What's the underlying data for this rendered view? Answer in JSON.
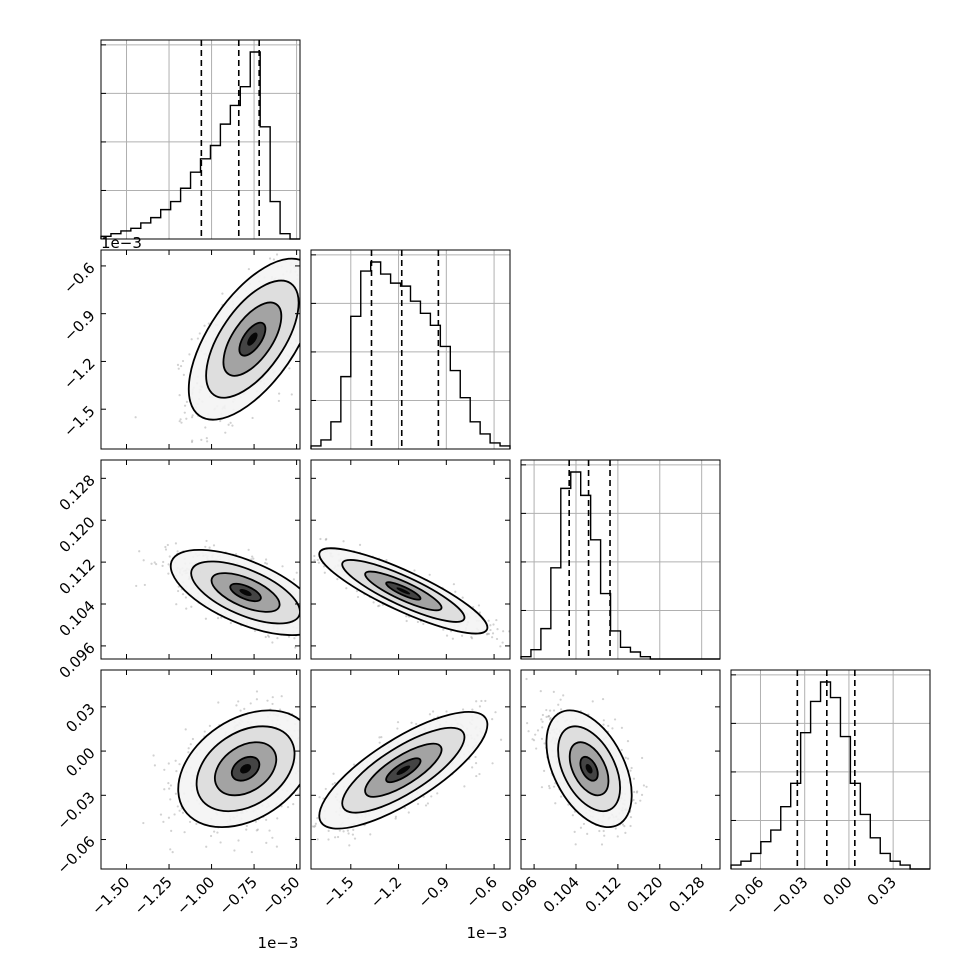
{
  "chart_data": {
    "type": "corner",
    "axis_multipliers": {
      "x0": "1e−3",
      "x1": "1e−3",
      "y1": "1e−3"
    },
    "params": [
      {
        "range": [
          -1.65,
          -0.48
        ],
        "ticks": [
          -1.5,
          -1.25,
          -1.0,
          -0.75,
          -0.5
        ],
        "tick_labels": [
          "−1.50",
          "−1.25",
          "−1.00",
          "−0.75",
          "−0.50"
        ],
        "quantiles": [
          -1.06,
          -0.84,
          -0.72
        ],
        "hist_counts": [
          1,
          2,
          3,
          4,
          6,
          8,
          11,
          14,
          19,
          25,
          30,
          35,
          43,
          50,
          57,
          70,
          42,
          14,
          2,
          0
        ]
      },
      {
        "range": [
          -1.75,
          -0.5
        ],
        "ticks": [
          -1.5,
          -1.2,
          -0.9,
          -0.6
        ],
        "tick_labels": [
          "−1.5",
          "−1.2",
          "−0.9",
          "−0.6"
        ],
        "quantiles": [
          -1.37,
          -1.18,
          -0.95
        ],
        "hist_counts": [
          1,
          3,
          9,
          24,
          44,
          59,
          62,
          58,
          55,
          54,
          49,
          45,
          41,
          34,
          26,
          17,
          9,
          5,
          2,
          1
        ]
      },
      {
        "range": [
          0.0935,
          0.1315
        ],
        "ticks": [
          0.096,
          0.104,
          0.112,
          0.12,
          0.128
        ],
        "tick_labels": [
          "0.096",
          "0.104",
          "0.112",
          "0.120",
          "0.128"
        ],
        "quantiles": [
          0.1027,
          0.1064,
          0.1105
        ],
        "hist_counts": [
          1,
          4,
          13,
          39,
          73,
          80,
          70,
          51,
          28,
          12,
          5,
          3,
          1,
          0,
          0,
          0,
          0,
          0,
          0,
          0
        ]
      },
      {
        "range": [
          -0.08,
          0.055
        ],
        "ticks": [
          -0.06,
          -0.03,
          0.0,
          0.03
        ],
        "tick_labels": [
          "−0.06",
          "−0.03",
          "0.00",
          "0.03"
        ],
        "quantiles": [
          -0.035,
          -0.015,
          0.004
        ],
        "hist_counts": [
          1,
          2,
          4,
          7,
          10,
          16,
          22,
          35,
          43,
          48,
          44,
          34,
          22,
          14,
          8,
          4,
          2,
          1,
          0,
          0
        ]
      }
    ],
    "y_tick_labels": {
      "1": [
        "−0.6",
        "−0.9",
        "−1.2",
        "−1.5"
      ],
      "2": [
        "0.128",
        "0.120",
        "0.112",
        "0.104",
        "0.096"
      ],
      "3": [
        "0.03",
        "0.00",
        "−0.03",
        "−0.06"
      ]
    },
    "y_ticks": {
      "1": [
        -0.6,
        -0.9,
        -1.2,
        -1.5
      ],
      "2": [
        0.128,
        0.12,
        0.112,
        0.104,
        0.096
      ],
      "3": [
        0.03,
        0.0,
        -0.03,
        -0.06
      ]
    },
    "pairs": [
      {
        "row": 1,
        "col": 0,
        "mean": [
          -0.76,
          -1.06
        ],
        "sd": [
          0.17,
          0.23
        ],
        "rho": 0.62
      },
      {
        "row": 2,
        "col": 0,
        "mean": [
          -0.8,
          0.1062
        ],
        "sd": [
          0.2,
          0.0037
        ],
        "rho": -0.62
      },
      {
        "row": 2,
        "col": 1,
        "mean": [
          -1.17,
          0.1065
        ],
        "sd": [
          0.24,
          0.0037
        ],
        "rho": -0.86
      },
      {
        "row": 3,
        "col": 0,
        "mean": [
          -0.8,
          -0.012
        ],
        "sd": [
          0.18,
          0.018
        ],
        "rho": 0.35
      },
      {
        "row": 3,
        "col": 1,
        "mean": [
          -1.17,
          -0.013
        ],
        "sd": [
          0.24,
          0.018
        ],
        "rho": 0.78
      },
      {
        "row": 3,
        "col": 2,
        "mean": [
          0.1065,
          -0.012
        ],
        "sd": [
          0.0037,
          0.018
        ],
        "rho": -0.45
      }
    ]
  }
}
